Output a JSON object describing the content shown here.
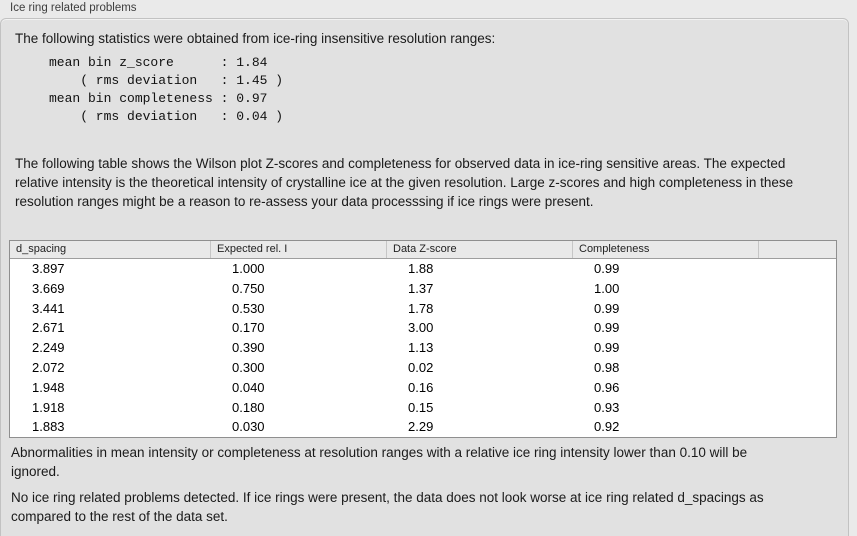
{
  "panel": {
    "title": "Ice ring related problems"
  },
  "intro": {
    "text": "The following statistics were obtained from ice-ring insensitive resolution ranges:",
    "stats_block": "mean bin z_score      : 1.84\n    ( rms deviation   : 1.45 )\nmean bin completeness : 0.97\n    ( rms deviation   : 0.04 )",
    "stats": {
      "mean_bin_z_score": "1.84",
      "z_score_rms_deviation": "1.45",
      "mean_bin_completeness": "0.97",
      "completeness_rms_deviation": "0.04"
    }
  },
  "description": "The following table shows the Wilson plot Z-scores and completeness for observed data in ice-ring sensitive areas. The expected relative intensity is the theoretical intensity of crystalline ice at the given resolution. Large z-scores and high completeness in these resolution ranges might be a reason to re-assess your data processsing if ice rings were present.",
  "table": {
    "columns": [
      "d_spacing",
      "Expected rel. I",
      "Data Z-score",
      "Completeness",
      ""
    ],
    "rows": [
      [
        "3.897",
        "1.000",
        "1.88",
        "0.99"
      ],
      [
        "3.669",
        "0.750",
        "1.37",
        "1.00"
      ],
      [
        "3.441",
        "0.530",
        "1.78",
        "0.99"
      ],
      [
        "2.671",
        "0.170",
        "3.00",
        "0.99"
      ],
      [
        "2.249",
        "0.390",
        "1.13",
        "0.99"
      ],
      [
        "2.072",
        "0.300",
        "0.02",
        "0.98"
      ],
      [
        "1.948",
        "0.040",
        "0.16",
        "0.96"
      ],
      [
        "1.918",
        "0.180",
        "0.15",
        "0.93"
      ],
      [
        "1.883",
        "0.030",
        "2.29",
        "0.92"
      ]
    ]
  },
  "notes": {
    "ignore_note": "Abnormalities in mean intensity or completeness at resolution ranges with a relative ice ring intensity lower than 0.10 will be ignored.",
    "conclusion": "No ice ring related problems detected. If ice rings were present, the data does not look worse at ice ring related d_spacings as compared to the rest of the data set."
  },
  "colors": {
    "outer_bg": "#eaeaea",
    "panel_bg": "#e1e1e1",
    "panel_border": "#c2c2c2",
    "table_bg": "#ffffff",
    "table_border": "#8f8f8f",
    "header_bg": "#e9e9e9",
    "header_separator": "#c6c6c6",
    "text": "#1a1a1a"
  }
}
